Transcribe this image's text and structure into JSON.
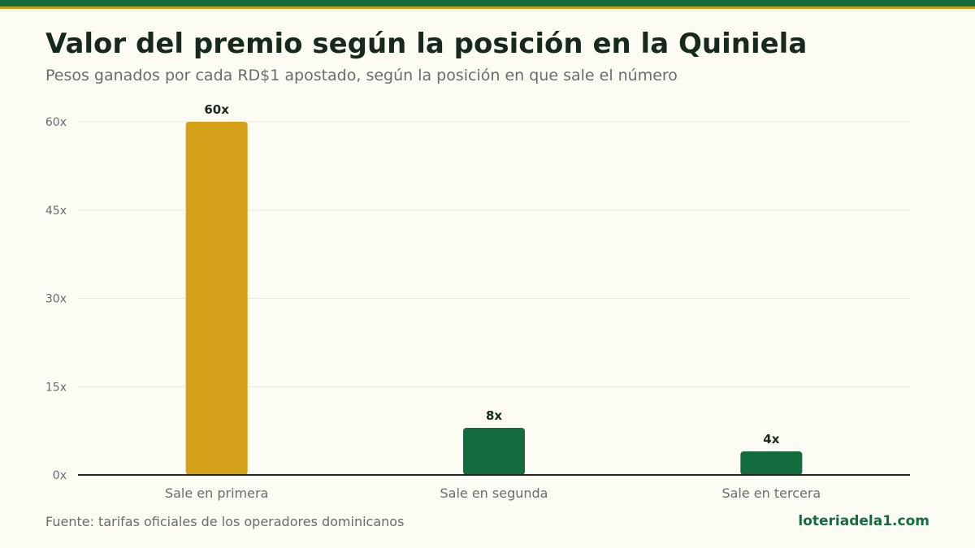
{
  "title": "Valor del premio según la posición en la Quiniela",
  "subtitle": "Pesos ganados por cada RD$1 apostado, según la posición en que sale el número",
  "source": "Fuente: tarifas oficiales de los operadores dominicanos",
  "brand": "loteriadela1.com",
  "colors": {
    "background": "#fcfcf5",
    "brand_green": "#136b3e",
    "gold": "#d4a017",
    "text_dark": "#16291c",
    "text_muted": "#6b6b6b"
  },
  "chart_data": {
    "type": "bar",
    "categories": [
      "Sale en primera",
      "Sale en segunda",
      "Sale en tercera"
    ],
    "values": [
      60,
      8,
      4
    ],
    "value_labels": [
      "60x",
      "8x",
      "4x"
    ],
    "bar_colors": [
      "#d4a017",
      "#136b3e",
      "#136b3e"
    ],
    "yticks": [
      0,
      15,
      30,
      45,
      60
    ],
    "ytick_labels": [
      "0x",
      "15x",
      "30x",
      "45x",
      "60x"
    ],
    "ylim": [
      0,
      60
    ],
    "grid": true,
    "legend": "none"
  }
}
